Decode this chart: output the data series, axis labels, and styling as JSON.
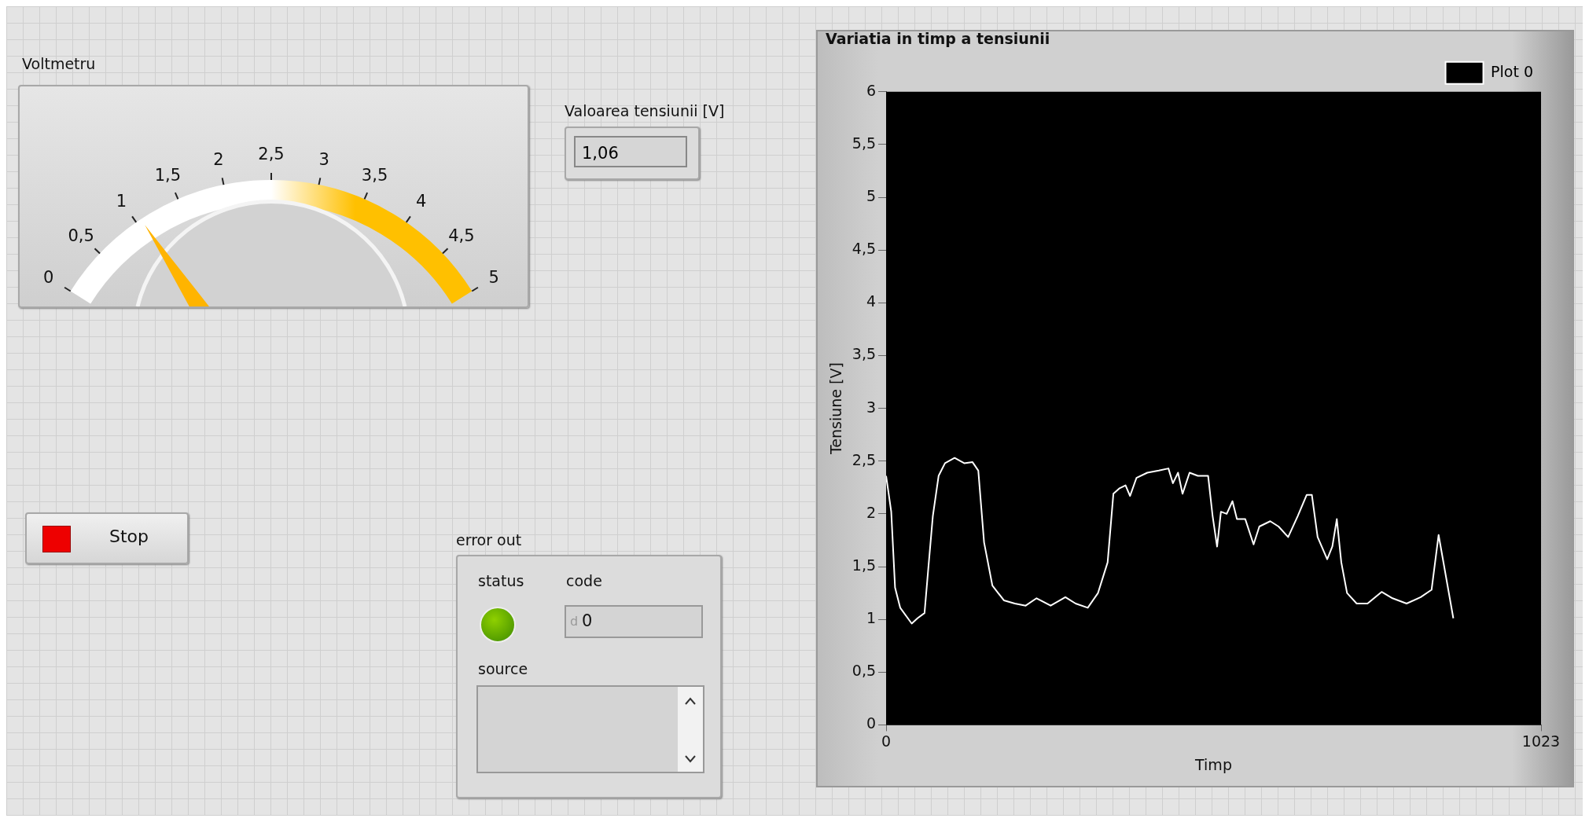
{
  "chart_data": [
    {
      "type": "other",
      "title": "Voltmetru",
      "annotations": [
        "0",
        "0,5",
        "1",
        "1,5",
        "2",
        "2,5",
        "3",
        "3,5",
        "4",
        "4,5",
        "5"
      ]
    },
    {
      "type": "other",
      "title": "Valoarea tensiunii [V]",
      "annotations": [
        "1,06"
      ]
    },
    {
      "type": "other",
      "annotations": [
        "Stop"
      ]
    },
    {
      "type": "other",
      "title": "error out",
      "annotations": [
        "status",
        "code",
        "d",
        "0",
        "source"
      ]
    },
    {
      "type": "line",
      "title": "Variatia in timp a tensiunii",
      "xlabel": "Timp",
      "ylabel": "Tensiune [V]",
      "legend": "top right",
      "grid": false,
      "marker": "none",
      "xlim": [
        0,
        1023
      ],
      "xticks": [
        0,
        1023
      ],
      "ylim": [
        0,
        6
      ],
      "yticks": [
        0,
        {
          "value": 0.5,
          "label": "0,5"
        },
        1,
        {
          "value": 1.5,
          "label": "1,5"
        },
        2,
        {
          "value": 2.5,
          "label": "2,5"
        },
        3,
        {
          "value": 3.5,
          "label": "3,5"
        },
        4,
        {
          "value": 4.5,
          "label": "4,5"
        },
        5,
        {
          "value": 5.5,
          "label": "5,5"
        },
        6
      ],
      "series": [
        {
          "name": "Plot 0",
          "color": "#ffffff",
          "x": [
            0,
            8,
            14,
            22,
            40,
            49,
            60,
            66,
            73,
            82,
            92,
            107,
            122,
            135,
            144,
            153,
            166,
            184,
            201,
            218,
            235,
            257,
            280,
            296,
            315,
            331,
            346,
            355,
            364,
            374,
            381,
            391,
            408,
            426,
            441,
            448,
            456,
            463,
            474,
            487,
            503,
            510,
            517,
            523,
            532,
            541,
            548,
            561,
            574,
            583,
            600,
            613,
            628,
            643,
            657,
            665,
            674,
            689,
            697,
            704,
            711,
            720,
            735,
            752,
            774,
            791,
            813,
            835,
            852,
            863,
            886
          ],
          "values": [
            2.36,
            2.02,
            1.3,
            1.11,
            0.96,
            1.01,
            1.06,
            1.49,
            1.98,
            2.36,
            2.48,
            2.53,
            2.48,
            2.49,
            2.41,
            1.73,
            1.32,
            1.18,
            1.15,
            1.13,
            1.2,
            1.13,
            1.21,
            1.15,
            1.11,
            1.25,
            1.54,
            2.19,
            2.24,
            2.27,
            2.17,
            2.34,
            2.39,
            2.41,
            2.43,
            2.29,
            2.39,
            2.19,
            2.39,
            2.36,
            2.36,
            1.98,
            1.69,
            2.02,
            2,
            2.12,
            1.95,
            1.95,
            1.71,
            1.88,
            1.93,
            1.88,
            1.78,
            1.98,
            2.18,
            2.18,
            1.78,
            1.57,
            1.69,
            1.95,
            1.54,
            1.25,
            1.15,
            1.15,
            1.26,
            1.2,
            1.15,
            1.21,
            1.28,
            1.8,
            1.01
          ]
        }
      ]
    }
  ]
}
